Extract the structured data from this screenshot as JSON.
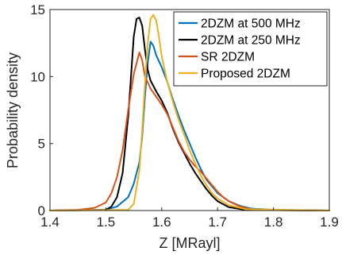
{
  "chart_data": {
    "type": "line",
    "title": "",
    "xlabel": "Z [MRayl]",
    "ylabel": "Probability density",
    "xlim": [
      1.4,
      1.9
    ],
    "ylim": [
      0,
      15
    ],
    "xticks": [
      "1.4",
      "1.5",
      "1.6",
      "1.7",
      "1.8",
      "1.9"
    ],
    "yticks": [
      "0",
      "5",
      "10",
      "15"
    ],
    "grid": false,
    "legend_position": "top-right",
    "series": [
      {
        "name": "2DZM at 500 MHz",
        "color": "#0072BD",
        "points": [
          [
            1.4,
            0
          ],
          [
            1.5,
            0.05
          ],
          [
            1.52,
            0.3
          ],
          [
            1.54,
            1.0
          ],
          [
            1.55,
            2.0
          ],
          [
            1.56,
            3.6
          ],
          [
            1.565,
            5.5
          ],
          [
            1.57,
            8.5
          ],
          [
            1.575,
            11.0
          ],
          [
            1.58,
            12.6
          ],
          [
            1.585,
            12.3
          ],
          [
            1.59,
            11.6
          ],
          [
            1.6,
            10.7
          ],
          [
            1.61,
            9.6
          ],
          [
            1.62,
            8.3
          ],
          [
            1.63,
            7.1
          ],
          [
            1.64,
            6.0
          ],
          [
            1.65,
            5.0
          ],
          [
            1.66,
            4.0
          ],
          [
            1.67,
            3.1
          ],
          [
            1.68,
            2.3
          ],
          [
            1.69,
            1.8
          ],
          [
            1.7,
            1.3
          ],
          [
            1.72,
            0.7
          ],
          [
            1.74,
            0.35
          ],
          [
            1.76,
            0.15
          ],
          [
            1.8,
            0.05
          ],
          [
            1.9,
            0
          ]
        ]
      },
      {
        "name": "2DZM at 250 MHz",
        "color": "#000000",
        "points": [
          [
            1.4,
            0
          ],
          [
            1.5,
            0.05
          ],
          [
            1.51,
            0.3
          ],
          [
            1.52,
            1.0
          ],
          [
            1.53,
            2.8
          ],
          [
            1.54,
            7.0
          ],
          [
            1.545,
            10.0
          ],
          [
            1.55,
            13.0
          ],
          [
            1.555,
            14.3
          ],
          [
            1.56,
            14.4
          ],
          [
            1.565,
            13.8
          ],
          [
            1.57,
            12.0
          ],
          [
            1.575,
            10.5
          ],
          [
            1.58,
            9.7
          ],
          [
            1.59,
            8.9
          ],
          [
            1.6,
            8.2
          ],
          [
            1.61,
            7.3
          ],
          [
            1.62,
            6.1
          ],
          [
            1.63,
            5.1
          ],
          [
            1.64,
            4.3
          ],
          [
            1.65,
            3.5
          ],
          [
            1.66,
            2.8
          ],
          [
            1.67,
            2.2
          ],
          [
            1.68,
            1.6
          ],
          [
            1.69,
            1.1
          ],
          [
            1.7,
            0.7
          ],
          [
            1.72,
            0.25
          ],
          [
            1.75,
            0.05
          ],
          [
            1.9,
            0
          ]
        ]
      },
      {
        "name": "SR 2DZM",
        "color": "#D95319",
        "points": [
          [
            1.4,
            0
          ],
          [
            1.45,
            0.05
          ],
          [
            1.48,
            0.2
          ],
          [
            1.5,
            0.6
          ],
          [
            1.51,
            1.3
          ],
          [
            1.52,
            2.5
          ],
          [
            1.53,
            4.5
          ],
          [
            1.54,
            7.5
          ],
          [
            1.55,
            10.2
          ],
          [
            1.56,
            11.8
          ],
          [
            1.565,
            11.2
          ],
          [
            1.57,
            10.0
          ],
          [
            1.58,
            9.1
          ],
          [
            1.59,
            8.5
          ],
          [
            1.6,
            7.9
          ],
          [
            1.61,
            7.2
          ],
          [
            1.62,
            6.2
          ],
          [
            1.63,
            5.2
          ],
          [
            1.64,
            4.4
          ],
          [
            1.65,
            3.8
          ],
          [
            1.66,
            3.3
          ],
          [
            1.67,
            2.9
          ],
          [
            1.68,
            2.4
          ],
          [
            1.69,
            1.9
          ],
          [
            1.7,
            1.4
          ],
          [
            1.71,
            1.0
          ],
          [
            1.72,
            0.7
          ],
          [
            1.74,
            0.3
          ],
          [
            1.76,
            0.1
          ],
          [
            1.8,
            0.03
          ],
          [
            1.9,
            0
          ]
        ]
      },
      {
        "name": "Proposed 2DZM",
        "color": "#EDB120",
        "points": [
          [
            1.4,
            0
          ],
          [
            1.54,
            0.05
          ],
          [
            1.55,
            0.5
          ],
          [
            1.56,
            3.0
          ],
          [
            1.565,
            6.0
          ],
          [
            1.57,
            9.5
          ],
          [
            1.575,
            12.5
          ],
          [
            1.58,
            14.3
          ],
          [
            1.585,
            14.6
          ],
          [
            1.59,
            14.2
          ],
          [
            1.595,
            13.0
          ],
          [
            1.6,
            11.5
          ],
          [
            1.61,
            9.6
          ],
          [
            1.62,
            8.1
          ],
          [
            1.63,
            6.8
          ],
          [
            1.64,
            5.7
          ],
          [
            1.65,
            4.5
          ],
          [
            1.66,
            3.5
          ],
          [
            1.67,
            2.6
          ],
          [
            1.68,
            1.9
          ],
          [
            1.69,
            1.3
          ],
          [
            1.7,
            0.9
          ],
          [
            1.72,
            0.4
          ],
          [
            1.75,
            0.1
          ],
          [
            1.9,
            0
          ]
        ]
      }
    ]
  }
}
